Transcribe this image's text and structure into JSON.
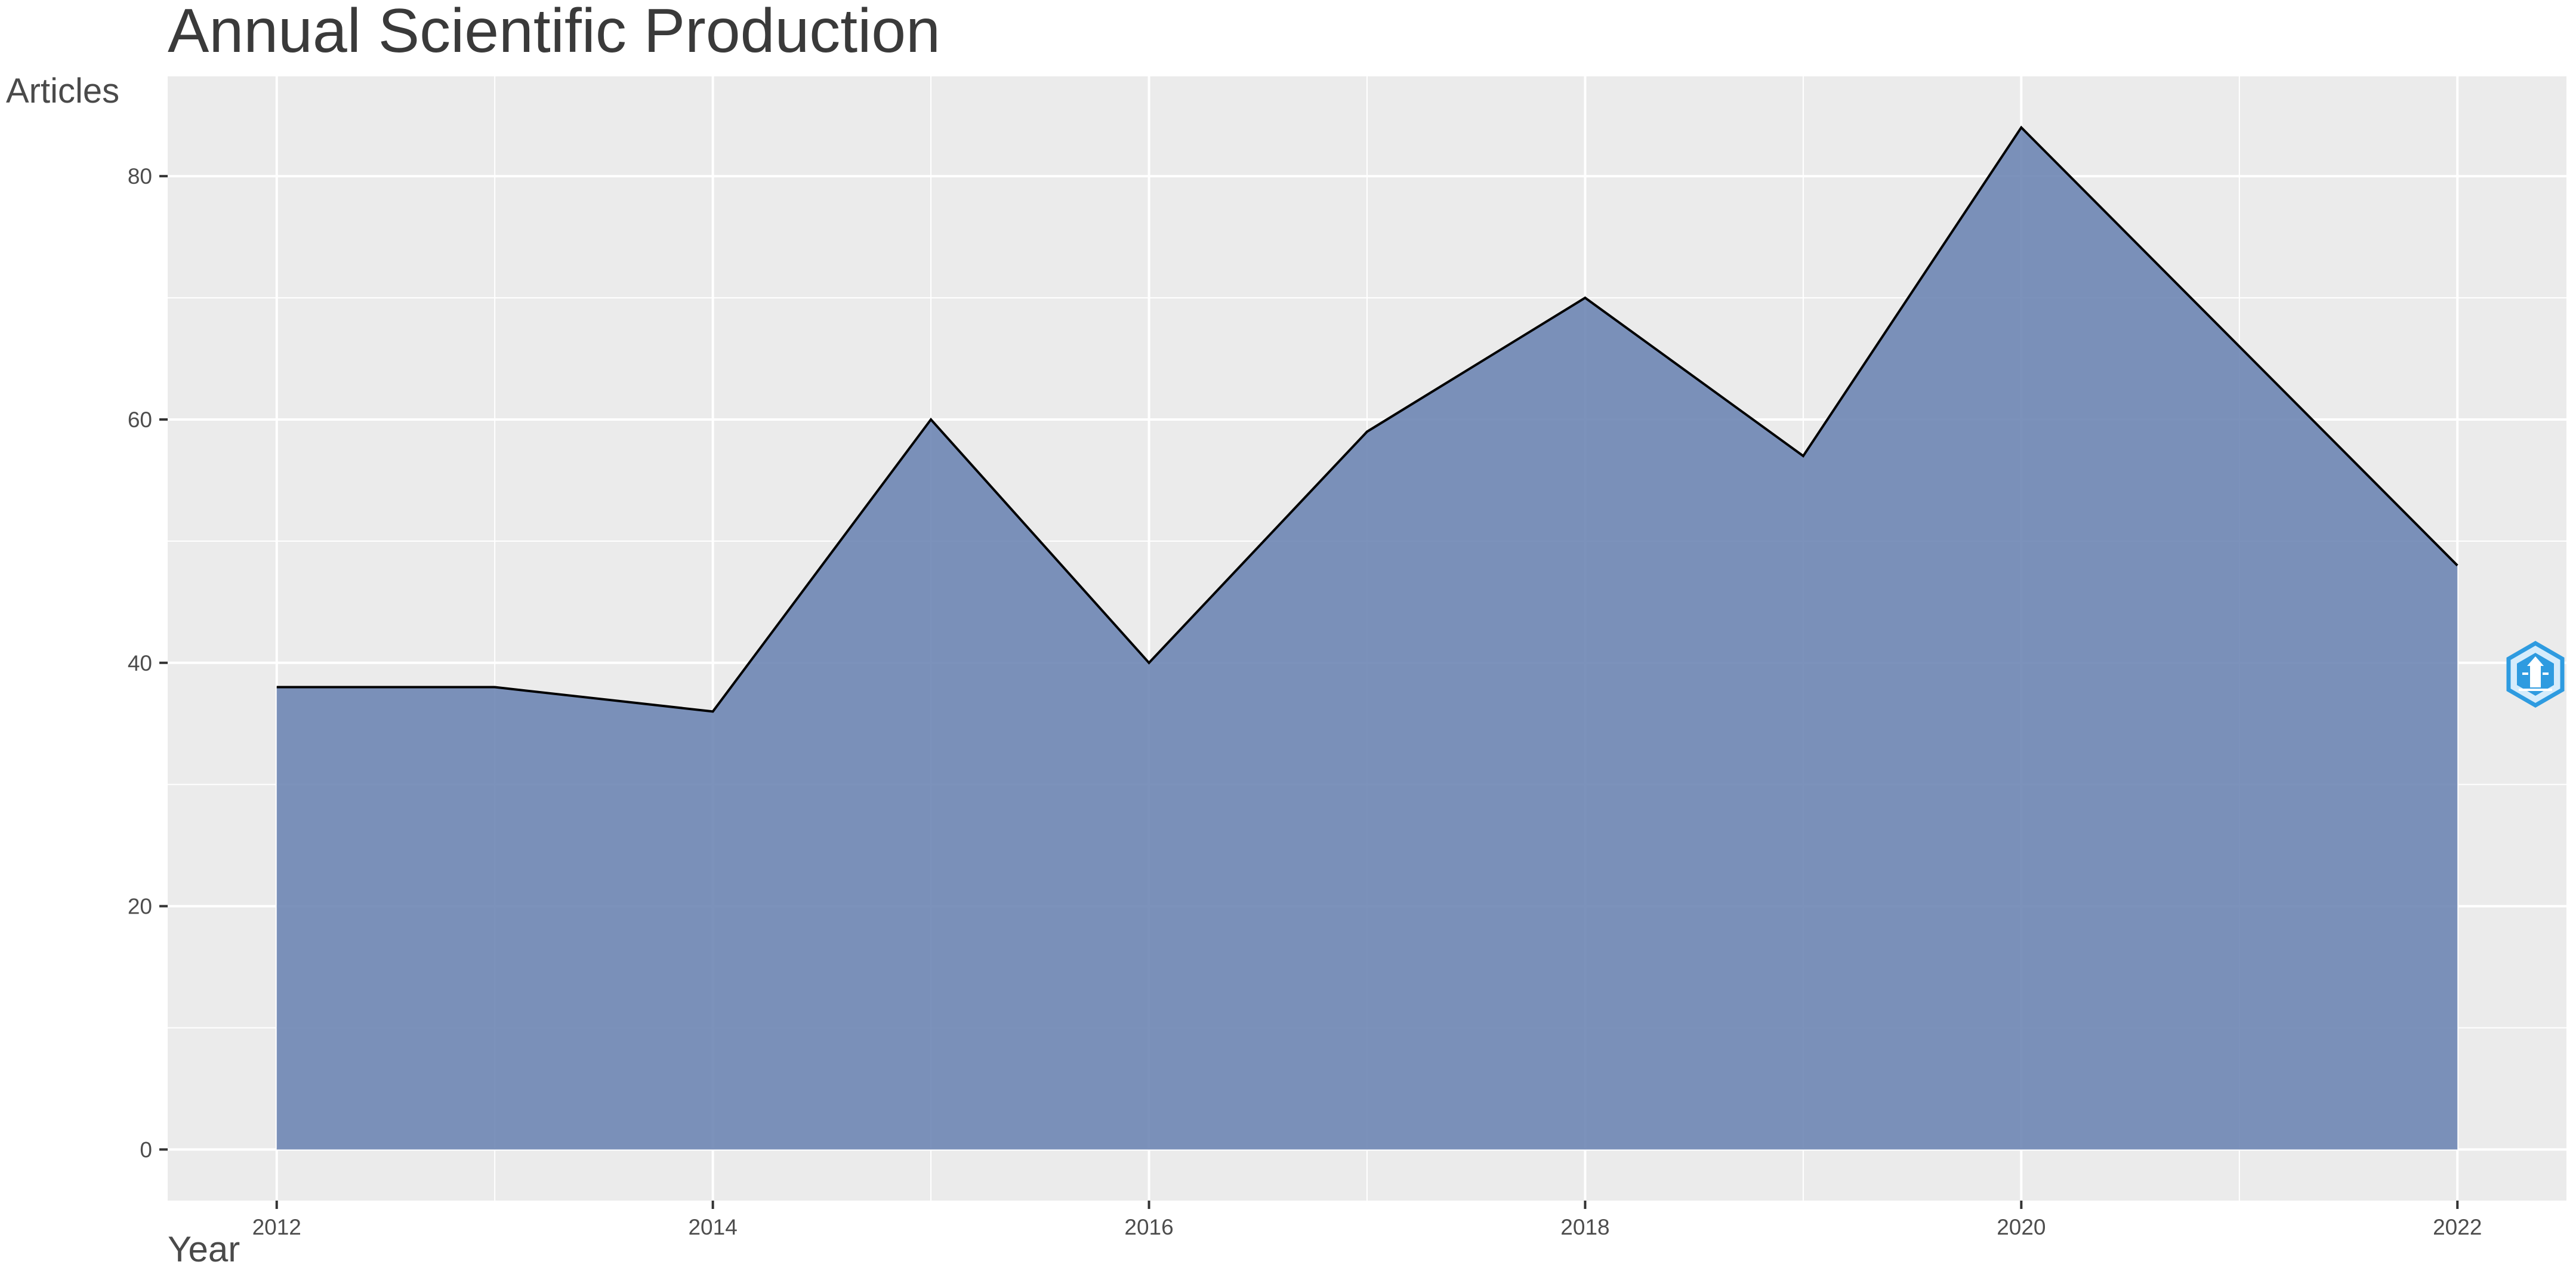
{
  "chart_data": {
    "type": "area",
    "title": "Annual Scientific Production",
    "xlabel": "Year",
    "ylabel": "Articles",
    "x": [
      2012,
      2013,
      2014,
      2015,
      2016,
      2017,
      2018,
      2019,
      2020,
      2021,
      2022
    ],
    "series": [
      {
        "values": [
          38,
          38,
          36,
          60,
          40,
          59,
          70,
          57,
          84,
          66,
          48
        ]
      }
    ],
    "xlim": [
      2011.5,
      2022.5
    ],
    "ylim": [
      -4.2,
      88.2
    ],
    "x_ticks": [
      2012,
      2014,
      2016,
      2018,
      2020,
      2022
    ],
    "x_tick_labels": [
      "2012",
      "2014",
      "2016",
      "2018",
      "2020",
      "2022"
    ],
    "y_ticks": [
      0,
      20,
      40,
      60,
      80
    ],
    "y_tick_labels": [
      "0",
      "20",
      "40",
      "60",
      "80"
    ],
    "grid": true,
    "colors": {
      "panel_background": "#ebebeb",
      "grid_major": "#ffffff",
      "area_fill": "#6e86b4",
      "outline": "#000000"
    }
  },
  "watermark": {
    "icon": "lighthouse-hexagon-icon",
    "color": "#2e9be0"
  }
}
